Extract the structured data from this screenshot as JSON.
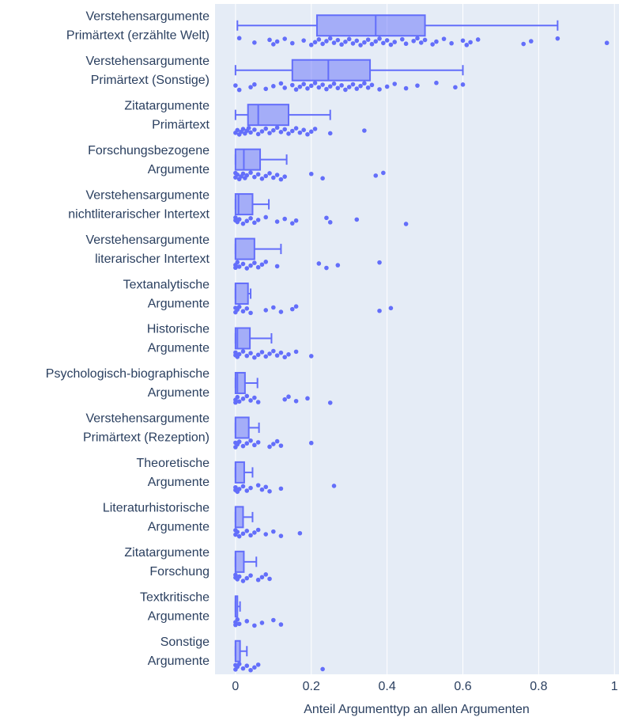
{
  "chart_data": {
    "type": "box",
    "xlabel": "Anteil Argumenttyp an allen Argumenten",
    "categories": [
      [
        "Verstehensargumente",
        "Primärtext (erzählte Welt)"
      ],
      [
        "Verstehensargumente",
        "Primärtext (Sonstige)"
      ],
      [
        "Zitatargumente",
        "Primärtext"
      ],
      [
        "Forschungsbezogene",
        "Argumente"
      ],
      [
        "Verstehensargumente",
        "nichtliterarischer Intertext"
      ],
      [
        "Verstehensargumente",
        "literarischer Intertext"
      ],
      [
        "Textanalytische",
        "Argumente"
      ],
      [
        "Historische",
        "Argumente"
      ],
      [
        "Psychologisch-biographische",
        "Argumente"
      ],
      [
        "Verstehensargumente",
        "Primärtext (Rezeption)"
      ],
      [
        "Theoretische",
        "Argumente"
      ],
      [
        "Literaturhistorische",
        "Argumente"
      ],
      [
        "Zitatargumente",
        "Forschung"
      ],
      [
        "Textkritische",
        "Argumente"
      ],
      [
        "Sonstige",
        "Argumente"
      ]
    ],
    "lower": [
      0.005,
      0,
      0,
      0,
      0,
      0,
      0,
      0,
      0,
      0,
      0,
      0,
      0,
      0,
      0
    ],
    "q1": [
      0.215,
      0.15,
      0.033,
      0,
      0,
      0,
      0,
      0,
      0,
      0,
      0,
      0,
      0,
      0,
      0
    ],
    "median": [
      0.37,
      0.245,
      0.06,
      0.022,
      0.008,
      0,
      0,
      0.005,
      0.005,
      0,
      0,
      0,
      0,
      0,
      0
    ],
    "q3": [
      0.5,
      0.355,
      0.14,
      0.065,
      0.045,
      0.05,
      0.033,
      0.038,
      0.025,
      0.035,
      0.023,
      0.02,
      0.022,
      0.005,
      0.012
    ],
    "upper": [
      0.85,
      0.6,
      0.25,
      0.135,
      0.088,
      0.12,
      0.04,
      0.095,
      0.058,
      0.062,
      0.045,
      0.045,
      0.055,
      0.012,
      0.03
    ],
    "points": [
      [
        0.01,
        0.05,
        0.09,
        0.1,
        0.11,
        0.13,
        0.15,
        0.18,
        0.2,
        0.21,
        0.22,
        0.23,
        0.24,
        0.25,
        0.26,
        0.27,
        0.28,
        0.29,
        0.3,
        0.31,
        0.32,
        0.33,
        0.34,
        0.35,
        0.36,
        0.37,
        0.38,
        0.39,
        0.4,
        0.41,
        0.42,
        0.44,
        0.45,
        0.47,
        0.48,
        0.49,
        0.5,
        0.52,
        0.53,
        0.55,
        0.57,
        0.6,
        0.61,
        0.62,
        0.64,
        0.76,
        0.78,
        0.85,
        0.98
      ],
      [
        0,
        0.01,
        0.04,
        0.05,
        0.08,
        0.1,
        0.12,
        0.13,
        0.15,
        0.16,
        0.17,
        0.18,
        0.19,
        0.2,
        0.21,
        0.22,
        0.23,
        0.24,
        0.25,
        0.26,
        0.27,
        0.28,
        0.29,
        0.3,
        0.31,
        0.32,
        0.33,
        0.34,
        0.35,
        0.36,
        0.38,
        0.4,
        0.42,
        0.45,
        0.48,
        0.53,
        0.58,
        0.6
      ],
      [
        0,
        0.005,
        0.01,
        0.015,
        0.02,
        0.025,
        0.03,
        0.035,
        0.04,
        0.05,
        0.06,
        0.07,
        0.08,
        0.09,
        0.1,
        0.11,
        0.12,
        0.13,
        0.14,
        0.15,
        0.16,
        0.17,
        0.18,
        0.19,
        0.2,
        0.21,
        0.25,
        0.34
      ],
      [
        0,
        0,
        0.005,
        0.01,
        0.015,
        0.02,
        0.025,
        0.03,
        0.04,
        0.05,
        0.06,
        0.07,
        0.08,
        0.09,
        0.1,
        0.11,
        0.12,
        0.13,
        0.2,
        0.23,
        0.37,
        0.39
      ],
      [
        0,
        0,
        0.005,
        0.01,
        0.02,
        0.03,
        0.04,
        0.05,
        0.06,
        0.08,
        0.11,
        0.13,
        0.15,
        0.16,
        0.24,
        0.25,
        0.32,
        0.45
      ],
      [
        0,
        0,
        0.005,
        0.01,
        0.02,
        0.03,
        0.04,
        0.05,
        0.06,
        0.07,
        0.08,
        0.11,
        0.22,
        0.24,
        0.27,
        0.38
      ],
      [
        0,
        0,
        0.005,
        0.01,
        0.02,
        0.03,
        0.04,
        0.08,
        0.1,
        0.12,
        0.15,
        0.16,
        0.38,
        0.41
      ],
      [
        0,
        0,
        0.005,
        0.01,
        0.02,
        0.03,
        0.04,
        0.05,
        0.06,
        0.07,
        0.08,
        0.09,
        0.1,
        0.11,
        0.12,
        0.13,
        0.14,
        0.16,
        0.2
      ],
      [
        0,
        0,
        0.005,
        0.01,
        0.02,
        0.03,
        0.04,
        0.05,
        0.06,
        0.13,
        0.14,
        0.16,
        0.19,
        0.25
      ],
      [
        0,
        0,
        0.005,
        0.01,
        0.02,
        0.03,
        0.04,
        0.05,
        0.06,
        0.09,
        0.1,
        0.11,
        0.12,
        0.2
      ],
      [
        0,
        0,
        0.005,
        0.01,
        0.02,
        0.03,
        0.04,
        0.06,
        0.07,
        0.08,
        0.09,
        0.12,
        0.26
      ],
      [
        0,
        0,
        0.005,
        0.01,
        0.02,
        0.03,
        0.04,
        0.05,
        0.06,
        0.08,
        0.1,
        0.12,
        0.17
      ],
      [
        0,
        0,
        0.005,
        0.01,
        0.02,
        0.03,
        0.04,
        0.06,
        0.07,
        0.08,
        0.09
      ],
      [
        0,
        0,
        0.005,
        0.01,
        0.03,
        0.05,
        0.07,
        0.1,
        0.12
      ],
      [
        0,
        0,
        0.005,
        0.01,
        0.02,
        0.03,
        0.04,
        0.05,
        0.06,
        0.23
      ]
    ],
    "color": "#636efa",
    "xlim": [
      -0.054,
      1.012
    ],
    "xticks": [
      0,
      0.2,
      0.4,
      0.6,
      0.8,
      1
    ],
    "grid": true
  }
}
